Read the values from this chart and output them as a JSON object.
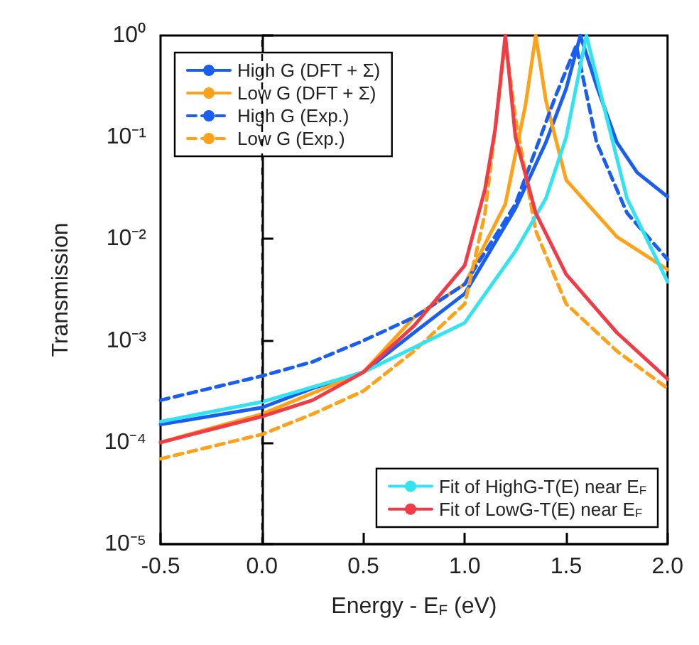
{
  "chart_data": {
    "type": "line",
    "xlabel": "Energy - E$_{F}$ (eV)",
    "ylabel": "Transmission",
    "log": "y",
    "xlim": [
      -0.5,
      2.0
    ],
    "xticks": [
      {
        "value": -0.5,
        "label": "-0.5"
      },
      {
        "value": 0,
        "label": "0.0"
      },
      {
        "value": 0.5,
        "label": "0.5"
      },
      {
        "value": 1,
        "label": "1.0"
      },
      {
        "value": 1.5,
        "label": "1.5"
      },
      {
        "value": 2,
        "label": "2.0"
      }
    ],
    "ylim": [
      1e-05,
      1
    ],
    "yticks": [
      {
        "value": 1e-05,
        "label": "10⁻⁵"
      },
      {
        "value": 0.0001,
        "label": "10⁻⁴"
      },
      {
        "value": 0.001,
        "label": "10⁻³"
      },
      {
        "value": 0.01,
        "label": "10⁻²"
      },
      {
        "value": 0.1,
        "label": "10⁻¹"
      },
      {
        "value": 1,
        "label": "10⁰"
      }
    ],
    "grid": false,
    "marker": "none",
    "legend": [
      "top left",
      "top left",
      "top left",
      "top left",
      "bottom right",
      "bottom right"
    ],
    "ref_lines": [
      {
        "axis": "x",
        "value": 0,
        "color": "#000000",
        "line_style": "dashed"
      }
    ],
    "series": [
      {
        "name": "High G (DFT + Σ)",
        "color": "#1a5ef0",
        "line_style": "solid",
        "x": [
          -0.5,
          0,
          0.25,
          0.5,
          0.75,
          1.0,
          1.25,
          1.4,
          1.5,
          1.57,
          1.65,
          1.75,
          1.85,
          2.0
        ],
        "values": [
          0.00015,
          0.00022,
          0.00034,
          0.00049,
          0.0012,
          0.0029,
          0.02,
          0.089,
          0.3,
          1,
          0.32,
          0.089,
          0.045,
          0.026
        ]
      },
      {
        "name": "Low G (DFT + Σ)",
        "color": "#ffa21a",
        "line_style": "solid",
        "x": [
          -0.5,
          0,
          0.5,
          0.75,
          1.0,
          1.2,
          1.3,
          1.35,
          1.4,
          1.5,
          1.75,
          2.0
        ],
        "values": [
          0.0001,
          0.00019,
          0.00049,
          0.0017,
          0.0036,
          0.022,
          0.21,
          1,
          0.23,
          0.038,
          0.0105,
          0.005
        ]
      },
      {
        "name": "High G (Exp.)",
        "color": "#1a5ef0",
        "line_style": "dashed",
        "x": [
          -0.5,
          0,
          0.25,
          0.5,
          0.75,
          1.0,
          1.25,
          1.45,
          1.55,
          1.65,
          1.8,
          2.0
        ],
        "values": [
          0.00026,
          0.00045,
          0.00062,
          0.001,
          0.0017,
          0.0036,
          0.022,
          0.26,
          0.8,
          0.089,
          0.018,
          0.0063
        ]
      },
      {
        "name": "Low G (Exp.)",
        "color": "#ffa21a",
        "line_style": "dashed",
        "x": [
          -0.5,
          0,
          0.25,
          0.5,
          0.75,
          1.0,
          1.1,
          1.17,
          1.2,
          1.25,
          1.35,
          1.5,
          1.75,
          2.0
        ],
        "values": [
          6.9e-05,
          0.00012,
          0.00019,
          0.00032,
          0.00079,
          0.0023,
          0.018,
          0.26,
          0.9,
          0.155,
          0.012,
          0.0023,
          0.00079,
          0.00034
        ]
      },
      {
        "name": "Fit of HighG-T(E) near E$_{F}$",
        "color": "#33e3f0",
        "line_style": "solid",
        "x": [
          -0.5,
          0,
          0.25,
          0.5,
          1.0,
          1.25,
          1.4,
          1.5,
          1.6,
          1.7,
          1.8,
          2.0
        ],
        "values": [
          0.00016,
          0.00025,
          0.00035,
          0.00049,
          0.0015,
          0.0076,
          0.025,
          0.1,
          1,
          0.155,
          0.025,
          0.0038
        ]
      },
      {
        "name": "Fit of LowG-T(E) near E$_{F}$",
        "color": "#f03c46",
        "line_style": "solid",
        "x": [
          -0.5,
          0,
          0.25,
          0.5,
          0.75,
          1.0,
          1.1,
          1.15,
          1.2,
          1.25,
          1.35,
          1.5,
          1.75,
          2.0
        ],
        "values": [
          0.0001,
          0.00018,
          0.00026,
          0.00049,
          0.0014,
          0.0055,
          0.031,
          0.12,
          1,
          0.1,
          0.018,
          0.0045,
          0.0012,
          0.00042
        ]
      }
    ]
  }
}
